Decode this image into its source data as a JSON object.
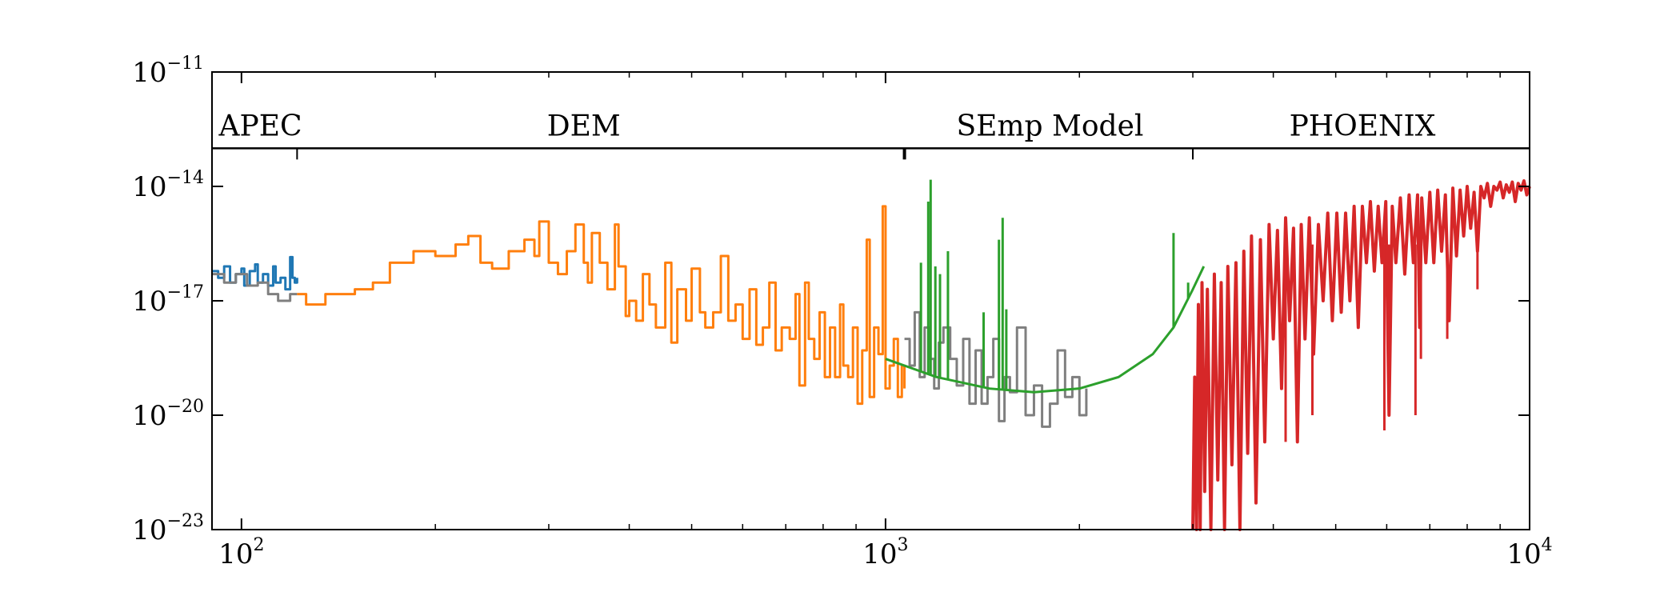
{
  "chart_data": {
    "type": "line",
    "title": "",
    "xlabel": "",
    "ylabel": "",
    "x_scale": "log",
    "y_scale": "log",
    "xlim": [
      90,
      10000
    ],
    "ylim": [
      1e-23,
      1e-11
    ],
    "grid": false,
    "legend": "none",
    "x_ticks": [
      {
        "value": 100,
        "base": "10",
        "exp": "2"
      },
      {
        "value": 1000,
        "base": "10",
        "exp": "3"
      },
      {
        "value": 10000,
        "base": "10",
        "exp": "4"
      }
    ],
    "y_ticks": [
      {
        "value": 1e-23,
        "base": "10",
        "exp": "−23"
      },
      {
        "value": 1e-20,
        "base": "10",
        "exp": "−20"
      },
      {
        "value": 1e-17,
        "base": "10",
        "exp": "−17"
      },
      {
        "value": 1e-14,
        "base": "10",
        "exp": "−14"
      },
      {
        "value": 1e-11,
        "base": "10",
        "exp": "−11"
      }
    ],
    "region_boundary_y": 1e-13,
    "region_dividers_x": [
      122,
      1070,
      3000
    ],
    "regions": [
      {
        "label": "APEC",
        "x_center": 107
      },
      {
        "label": "DEM",
        "x_center": 340
      },
      {
        "label": "SEmp Model",
        "x_center": 1800
      },
      {
        "label": "PHOENIX",
        "x_center": 5500
      }
    ],
    "series": [
      {
        "color": "#1f77b4",
        "style": "steps",
        "points": [
          [
            90,
            6e-17
          ],
          [
            92,
            4e-17
          ],
          [
            94,
            8e-17
          ],
          [
            96,
            3e-17
          ],
          [
            98,
            5e-17
          ],
          [
            100,
            7e-17
          ],
          [
            101,
            2.5e-17
          ],
          [
            103,
            6e-17
          ],
          [
            105,
            9e-17
          ],
          [
            106,
            3e-17
          ],
          [
            108,
            5e-17
          ],
          [
            110,
            2.5e-17
          ],
          [
            112,
            8e-17
          ],
          [
            113,
            3e-17
          ],
          [
            115,
            4e-17
          ],
          [
            117,
            2e-17
          ],
          [
            119,
            1.4e-16
          ],
          [
            120,
            4e-17
          ],
          [
            121,
            3e-17
          ],
          [
            122,
            4e-17
          ]
        ]
      },
      {
        "color": "#7f7f7f",
        "style": "steps",
        "points": [
          [
            90,
            5e-17
          ],
          [
            94,
            3e-17
          ],
          [
            98,
            5e-17
          ],
          [
            102,
            2.5e-17
          ],
          [
            106,
            3e-17
          ],
          [
            110,
            1.5e-17
          ],
          [
            114,
            1e-17
          ],
          [
            117,
            1e-17
          ],
          [
            119,
            1.5e-17
          ],
          [
            122,
            1.5e-17
          ]
        ]
      },
      {
        "color": "#ff7f0e",
        "style": "steps",
        "points": [
          [
            122,
            1.5e-17
          ],
          [
            126,
            8e-18
          ],
          [
            135,
            1.5e-17
          ],
          [
            150,
            2e-17
          ],
          [
            160,
            3e-17
          ],
          [
            170,
            1e-16
          ],
          [
            185,
            2e-16
          ],
          [
            200,
            1.5e-16
          ],
          [
            215,
            3e-16
          ],
          [
            225,
            5e-16
          ],
          [
            235,
            1e-16
          ],
          [
            245,
            7e-17
          ],
          [
            260,
            2e-16
          ],
          [
            275,
            4e-16
          ],
          [
            285,
            1.5e-16
          ],
          [
            290,
            1.2e-15
          ],
          [
            300,
            1e-16
          ],
          [
            310,
            5e-17
          ],
          [
            320,
            2e-16
          ],
          [
            330,
            1e-15
          ],
          [
            340,
            1e-16
          ],
          [
            345,
            3e-17
          ],
          [
            350,
            6e-16
          ],
          [
            360,
            1e-16
          ],
          [
            370,
            2e-17
          ],
          [
            380,
            1e-15
          ],
          [
            385,
            8e-17
          ],
          [
            395,
            4e-18
          ],
          [
            400,
            1e-17
          ],
          [
            410,
            3e-18
          ],
          [
            420,
            5e-17
          ],
          [
            430,
            8e-18
          ],
          [
            440,
            2e-18
          ],
          [
            455,
            1e-16
          ],
          [
            465,
            8e-19
          ],
          [
            475,
            2e-17
          ],
          [
            490,
            3e-18
          ],
          [
            500,
            7e-17
          ],
          [
            515,
            5e-18
          ],
          [
            525,
            2e-18
          ],
          [
            540,
            5e-18
          ],
          [
            555,
            1.5e-16
          ],
          [
            570,
            3e-18
          ],
          [
            585,
            8e-18
          ],
          [
            600,
            1e-18
          ],
          [
            615,
            2e-17
          ],
          [
            630,
            7e-19
          ],
          [
            645,
            2e-18
          ],
          [
            660,
            3e-17
          ],
          [
            675,
            5e-19
          ],
          [
            690,
            2e-18
          ],
          [
            710,
            1e-18
          ],
          [
            725,
            1.5e-17
          ],
          [
            735,
            6e-20
          ],
          [
            750,
            3e-17
          ],
          [
            760,
            1e-18
          ],
          [
            775,
            3e-19
          ],
          [
            790,
            5e-18
          ],
          [
            805,
            1e-19
          ],
          [
            820,
            2e-18
          ],
          [
            835,
            1e-19
          ],
          [
            850,
            8e-18
          ],
          [
            860,
            2e-19
          ],
          [
            875,
            1e-19
          ],
          [
            890,
            2e-18
          ],
          [
            905,
            2e-20
          ],
          [
            920,
            5e-19
          ],
          [
            935,
            4e-16
          ],
          [
            945,
            3e-20
          ],
          [
            960,
            2e-18
          ],
          [
            975,
            4e-19
          ],
          [
            990,
            3e-15
          ],
          [
            1000,
            5e-20
          ],
          [
            1015,
            2e-19
          ],
          [
            1030,
            1e-18
          ],
          [
            1045,
            3e-20
          ],
          [
            1060,
            2e-19
          ],
          [
            1070,
            5e-20
          ]
        ]
      },
      {
        "color": "#7f7f7f",
        "style": "steps",
        "points": [
          [
            1070,
            1e-18
          ],
          [
            1090,
            2e-19
          ],
          [
            1110,
            5e-18
          ],
          [
            1130,
            1e-19
          ],
          [
            1150,
            2e-18
          ],
          [
            1170,
            3e-19
          ],
          [
            1190,
            5e-20
          ],
          [
            1210,
            8e-19
          ],
          [
            1230,
            2e-18
          ],
          [
            1260,
            3e-19
          ],
          [
            1290,
            6e-20
          ],
          [
            1320,
            1e-18
          ],
          [
            1350,
            2e-20
          ],
          [
            1380,
            5e-19
          ],
          [
            1410,
            2e-20
          ],
          [
            1440,
            1e-19
          ],
          [
            1470,
            1e-18
          ],
          [
            1500,
            7e-21
          ],
          [
            1530,
            1e-19
          ],
          [
            1560,
            4e-20
          ],
          [
            1600,
            2e-18
          ],
          [
            1650,
            1e-20
          ],
          [
            1700,
            6e-20
          ],
          [
            1750,
            5e-21
          ],
          [
            1800,
            2e-20
          ],
          [
            1850,
            5e-19
          ],
          [
            1900,
            3e-20
          ],
          [
            1950,
            1e-19
          ],
          [
            2000,
            1e-20
          ],
          [
            2050,
            5e-20
          ]
        ]
      },
      {
        "color": "#2ca02c",
        "style": "line",
        "points": [
          [
            1000,
            3e-19
          ],
          [
            1200,
            1e-19
          ],
          [
            1450,
            5e-20
          ],
          [
            1700,
            4e-20
          ],
          [
            2000,
            5e-20
          ],
          [
            2300,
            1e-19
          ],
          [
            2600,
            4e-19
          ],
          [
            2800,
            2e-18
          ],
          [
            3000,
            2e-17
          ],
          [
            3120,
            8e-17
          ]
        ]
      },
      {
        "color": "#2ca02c",
        "style": "spikes",
        "base_curve": "previous",
        "spikes": [
          [
            1135,
            1e-16
          ],
          [
            1165,
            4e-15
          ],
          [
            1175,
            1.5e-14
          ],
          [
            1195,
            8e-17
          ],
          [
            1215,
            5e-17
          ],
          [
            1250,
            2e-16
          ],
          [
            1420,
            5e-18
          ],
          [
            1500,
            4e-16
          ],
          [
            1520,
            1.5e-15
          ],
          [
            1540,
            6e-18
          ],
          [
            2800,
            6e-16
          ],
          [
            2950,
            3e-17
          ]
        ]
      },
      {
        "color": "#d62728",
        "style": "dense",
        "points": [
          [
            3000,
            1e-23
          ],
          [
            3020,
            1e-19
          ],
          [
            3040,
            1e-23
          ],
          [
            3060,
            8e-18
          ],
          [
            3080,
            1e-23
          ],
          [
            3100,
            3e-17
          ],
          [
            3130,
            1e-22
          ],
          [
            3160,
            2e-17
          ],
          [
            3200,
            1e-23
          ],
          [
            3240,
            5e-17
          ],
          [
            3280,
            2e-22
          ],
          [
            3320,
            3e-17
          ],
          [
            3360,
            1e-23
          ],
          [
            3400,
            8e-17
          ],
          [
            3450,
            5e-22
          ],
          [
            3500,
            1e-16
          ],
          [
            3550,
            1e-23
          ],
          [
            3600,
            2e-16
          ],
          [
            3650,
            1e-21
          ],
          [
            3700,
            5e-16
          ],
          [
            3760,
            5e-23
          ],
          [
            3820,
            4e-16
          ],
          [
            3880,
            2e-21
          ],
          [
            3940,
            1e-15
          ],
          [
            4000,
            1e-18
          ],
          [
            4060,
            7e-16
          ],
          [
            4120,
            5e-20
          ],
          [
            4180,
            1.5e-15
          ],
          [
            4240,
            3e-18
          ],
          [
            4300,
            8e-16
          ],
          [
            4360,
            2e-21
          ],
          [
            4420,
            1e-15
          ],
          [
            4480,
            1e-18
          ],
          [
            4550,
            1.5e-15
          ],
          [
            4620,
            4e-19
          ],
          [
            4700,
            1e-15
          ],
          [
            4780,
            1e-17
          ],
          [
            4860,
            2e-15
          ],
          [
            4940,
            3e-18
          ],
          [
            5020,
            2e-15
          ],
          [
            5100,
            5e-18
          ],
          [
            5180,
            2e-15
          ],
          [
            5260,
            1e-17
          ],
          [
            5340,
            3e-15
          ],
          [
            5420,
            2e-18
          ],
          [
            5500,
            3e-15
          ],
          [
            5580,
            1e-16
          ],
          [
            5660,
            4e-15
          ],
          [
            5740,
            6e-17
          ],
          [
            5820,
            3e-15
          ],
          [
            5900,
            1e-16
          ],
          [
            5980,
            4e-15
          ],
          [
            6050,
            1e-20
          ],
          [
            6120,
            3e-15
          ],
          [
            6200,
            1e-16
          ],
          [
            6300,
            5e-15
          ],
          [
            6400,
            5e-17
          ],
          [
            6500,
            6e-15
          ],
          [
            6600,
            1e-16
          ],
          [
            6700,
            6e-15
          ],
          [
            6750,
            2e-18
          ],
          [
            6800,
            5e-15
          ],
          [
            6900,
            1e-16
          ],
          [
            7000,
            7e-15
          ],
          [
            7100,
            1e-16
          ],
          [
            7200,
            8e-15
          ],
          [
            7300,
            2e-16
          ],
          [
            7400,
            6e-15
          ],
          [
            7500,
            3e-18
          ],
          [
            7600,
            9e-15
          ],
          [
            7700,
            1.5e-16
          ],
          [
            7800,
            8e-15
          ],
          [
            7900,
            5e-16
          ],
          [
            8000,
            1e-14
          ],
          [
            8100,
            8e-16
          ],
          [
            8200,
            7e-15
          ],
          [
            8300,
            2e-16
          ],
          [
            8400,
            1e-14
          ],
          [
            8500,
            5e-15
          ],
          [
            8600,
            1.2e-14
          ],
          [
            8700,
            3e-15
          ],
          [
            8800,
            1e-14
          ],
          [
            8900,
            8e-15
          ],
          [
            9000,
            1.3e-14
          ],
          [
            9100,
            5e-15
          ],
          [
            9200,
            1.1e-14
          ],
          [
            9300,
            7e-15
          ],
          [
            9400,
            1.3e-14
          ],
          [
            9500,
            4e-15
          ],
          [
            9600,
            1.2e-14
          ],
          [
            9700,
            8e-15
          ],
          [
            9800,
            1.4e-14
          ],
          [
            9900,
            6e-15
          ],
          [
            10000,
            1e-14
          ]
        ],
        "deep_lines": [
          [
            4180,
            2e-21
          ],
          [
            4600,
            1e-20
          ],
          [
            5950,
            4e-21
          ],
          [
            6050,
            1e-20
          ],
          [
            6650,
            1e-20
          ],
          [
            6780,
            3e-19
          ],
          [
            7450,
            1e-18
          ],
          [
            8300,
            2e-17
          ]
        ]
      }
    ]
  }
}
